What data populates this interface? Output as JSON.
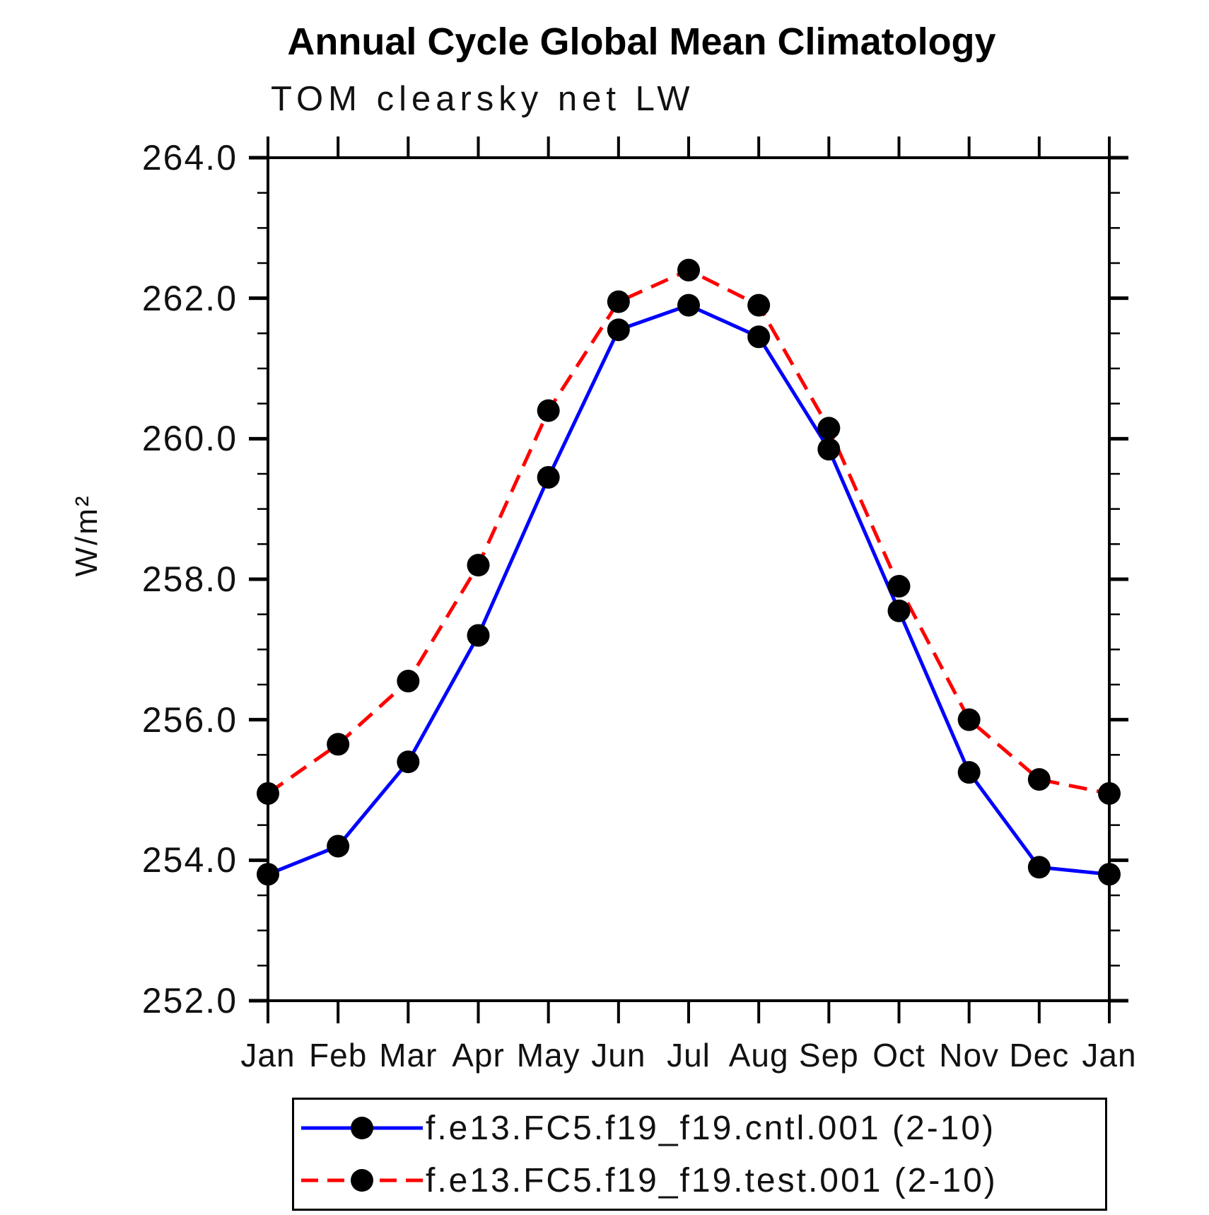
{
  "chart_data": {
    "type": "line",
    "title": "Annual Cycle Global Mean Climatology",
    "subtitle": "TOM clearsky net LW",
    "ylabel": "W/m²",
    "x_categories": [
      "Jan",
      "Feb",
      "Mar",
      "Apr",
      "May",
      "Jun",
      "Jul",
      "Aug",
      "Sep",
      "Oct",
      "Nov",
      "Dec",
      "Jan"
    ],
    "y_ticks": [
      "252.0",
      "254.0",
      "256.0",
      "258.0",
      "260.0",
      "262.0",
      "264.0"
    ],
    "ylim": [
      252.0,
      264.0
    ],
    "y_major_step": 2.0,
    "y_minor_step": 0.5,
    "grid": false,
    "legend_position": "bottom",
    "frame_color": "#000000",
    "marker_color": "#000000",
    "series": [
      {
        "name": "f.e13.FC5.f19_f19.cntl.001 (2-10)",
        "color": "#0000ff",
        "style": "solid",
        "marker": "circle",
        "values": [
          253.8,
          254.2,
          255.4,
          257.2,
          259.45,
          261.55,
          261.9,
          261.45,
          259.85,
          257.55,
          255.25,
          253.9,
          253.8
        ]
      },
      {
        "name": "f.e13.FC5.f19_f19.test.001 (2-10)",
        "color": "#ff0000",
        "style": "dashed",
        "marker": "circle",
        "values": [
          254.95,
          255.65,
          256.55,
          258.2,
          260.4,
          261.95,
          262.4,
          261.9,
          260.15,
          257.9,
          256.0,
          255.15,
          254.95
        ]
      }
    ]
  }
}
